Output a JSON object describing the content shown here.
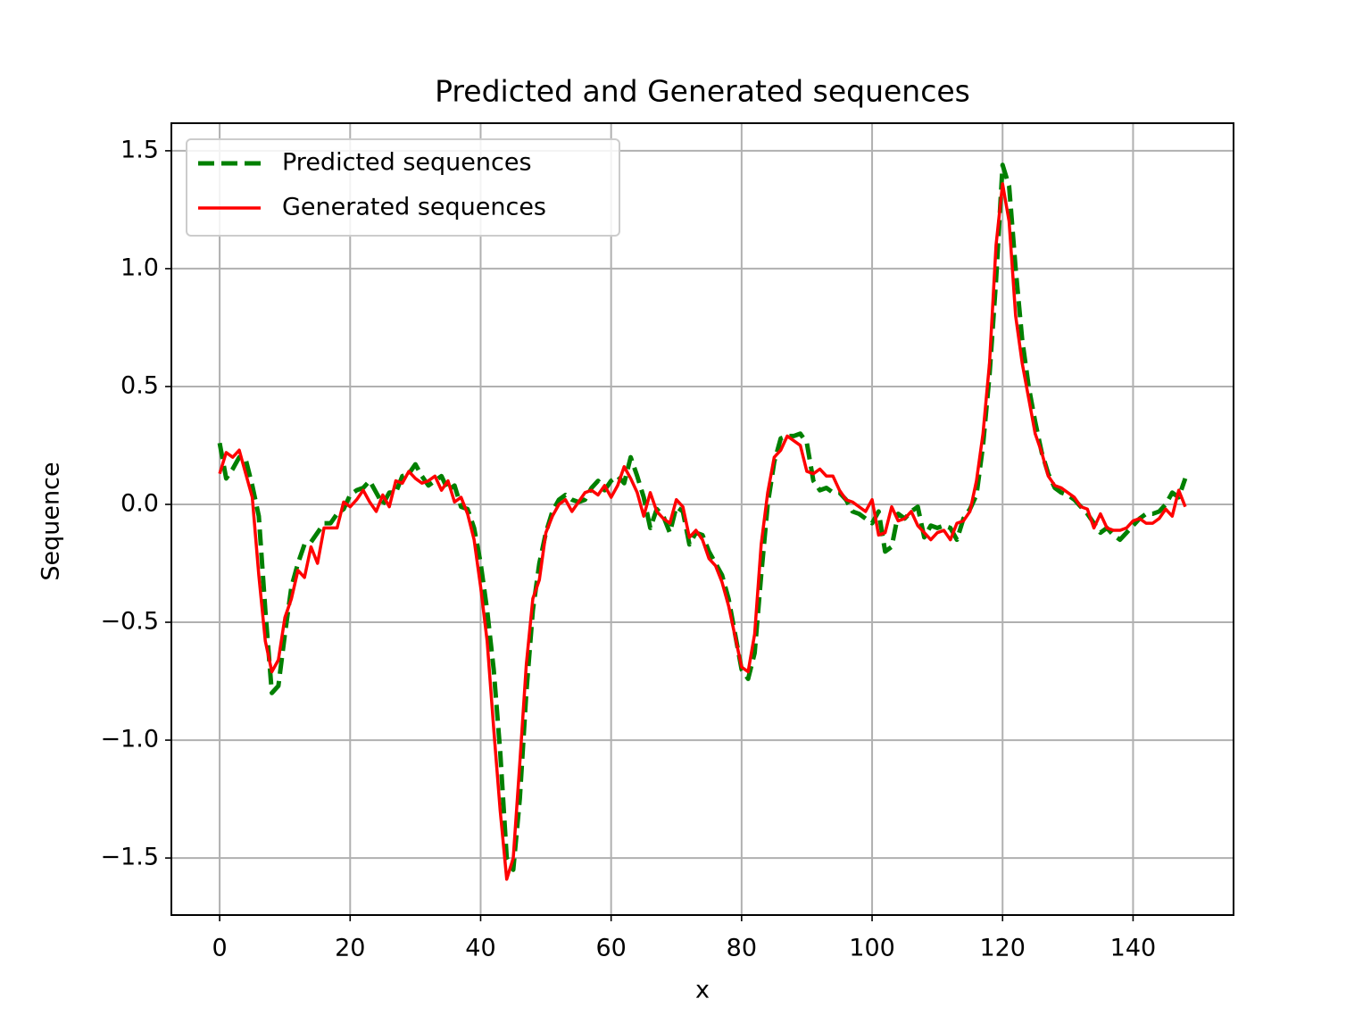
{
  "chart_data": {
    "type": "line",
    "title": "Predicted and Generated sequences",
    "x_label": "x",
    "y_label": "Sequence",
    "x": [
      0,
      1,
      2,
      3,
      4,
      5,
      6,
      7,
      8,
      9,
      10,
      11,
      12,
      13,
      14,
      15,
      16,
      17,
      18,
      19,
      20,
      21,
      22,
      23,
      24,
      25,
      26,
      27,
      28,
      29,
      30,
      31,
      32,
      33,
      34,
      35,
      36,
      37,
      38,
      39,
      40,
      41,
      42,
      43,
      44,
      45,
      46,
      47,
      48,
      49,
      50,
      51,
      52,
      53,
      54,
      55,
      56,
      57,
      58,
      59,
      60,
      61,
      62,
      63,
      64,
      65,
      66,
      67,
      68,
      69,
      70,
      71,
      72,
      73,
      74,
      75,
      76,
      77,
      78,
      79,
      80,
      81,
      82,
      83,
      84,
      85,
      86,
      87,
      88,
      89,
      90,
      91,
      92,
      93,
      94,
      95,
      96,
      97,
      98,
      99,
      100,
      101,
      102,
      103,
      104,
      105,
      106,
      107,
      108,
      109,
      110,
      111,
      112,
      113,
      114,
      115,
      116,
      117,
      118,
      119,
      120,
      121,
      122,
      123,
      124,
      125,
      126,
      127,
      128,
      129,
      130,
      131,
      132,
      133,
      134,
      135,
      136,
      137,
      138,
      139,
      140,
      141,
      142,
      143,
      144,
      145,
      146,
      147,
      148
    ],
    "series": [
      {
        "name": "Predicted sequences",
        "color": "#008000",
        "style": "dashed",
        "values": [
          0.26,
          0.11,
          0.15,
          0.2,
          0.19,
          0.08,
          -0.05,
          -0.45,
          -0.8,
          -0.77,
          -0.55,
          -0.35,
          -0.25,
          -0.17,
          -0.16,
          -0.12,
          -0.08,
          -0.08,
          -0.04,
          -0.02,
          0.04,
          0.06,
          0.07,
          0.1,
          0.05,
          0.0,
          0.05,
          0.05,
          0.12,
          0.13,
          0.17,
          0.12,
          0.08,
          0.1,
          0.12,
          0.06,
          0.08,
          -0.01,
          -0.02,
          -0.1,
          -0.25,
          -0.45,
          -0.7,
          -1.05,
          -1.5,
          -1.55,
          -1.25,
          -0.8,
          -0.45,
          -0.25,
          -0.12,
          -0.03,
          0.02,
          0.04,
          0.02,
          0.01,
          0.02,
          0.07,
          0.1,
          0.06,
          0.1,
          0.12,
          0.09,
          0.2,
          0.12,
          0.03,
          -0.1,
          -0.02,
          -0.05,
          -0.12,
          -0.01,
          -0.03,
          -0.17,
          -0.12,
          -0.13,
          -0.2,
          -0.25,
          -0.3,
          -0.4,
          -0.55,
          -0.7,
          -0.74,
          -0.63,
          -0.3,
          0.0,
          0.18,
          0.28,
          0.29,
          0.29,
          0.3,
          0.26,
          0.1,
          0.06,
          0.07,
          0.05,
          0.05,
          0.02,
          -0.03,
          -0.04,
          -0.06,
          -0.08,
          -0.03,
          -0.2,
          -0.18,
          -0.04,
          -0.06,
          -0.03,
          -0.01,
          -0.14,
          -0.09,
          -0.1,
          -0.09,
          -0.1,
          -0.15,
          -0.06,
          -0.02,
          0.04,
          0.25,
          0.55,
          0.95,
          1.44,
          1.35,
          1.0,
          0.7,
          0.5,
          0.35,
          0.22,
          0.13,
          0.07,
          0.05,
          0.04,
          0.02,
          -0.01,
          -0.04,
          -0.08,
          -0.12,
          -0.1,
          -0.13,
          -0.15,
          -0.12,
          -0.09,
          -0.06,
          -0.04,
          -0.04,
          -0.03,
          0.0,
          0.05,
          0.03,
          0.11
        ]
      },
      {
        "name": "Generated sequences",
        "color": "#ff0000",
        "style": "solid",
        "values": [
          0.13,
          0.22,
          0.2,
          0.23,
          0.13,
          0.03,
          -0.3,
          -0.58,
          -0.71,
          -0.66,
          -0.48,
          -0.4,
          -0.28,
          -0.31,
          -0.18,
          -0.25,
          -0.1,
          -0.1,
          -0.1,
          0.01,
          -0.01,
          0.02,
          0.06,
          0.01,
          -0.03,
          0.04,
          -0.01,
          0.1,
          0.09,
          0.14,
          0.11,
          0.09,
          0.1,
          0.12,
          0.06,
          0.1,
          0.01,
          0.03,
          -0.04,
          -0.15,
          -0.35,
          -0.58,
          -0.95,
          -1.3,
          -1.59,
          -1.5,
          -1.1,
          -0.68,
          -0.4,
          -0.32,
          -0.12,
          -0.05,
          0.0,
          0.02,
          -0.03,
          0.01,
          0.05,
          0.06,
          0.04,
          0.08,
          0.03,
          0.08,
          0.16,
          0.11,
          0.05,
          -0.05,
          0.05,
          -0.03,
          -0.06,
          -0.08,
          0.02,
          -0.01,
          -0.14,
          -0.11,
          -0.15,
          -0.23,
          -0.26,
          -0.33,
          -0.43,
          -0.56,
          -0.69,
          -0.71,
          -0.55,
          -0.17,
          0.05,
          0.2,
          0.23,
          0.29,
          0.27,
          0.25,
          0.14,
          0.13,
          0.15,
          0.12,
          0.12,
          0.06,
          0.02,
          0.01,
          -0.01,
          -0.03,
          0.02,
          -0.13,
          -0.12,
          -0.01,
          -0.07,
          -0.06,
          -0.03,
          -0.09,
          -0.12,
          -0.15,
          -0.12,
          -0.11,
          -0.15,
          -0.08,
          -0.07,
          -0.03,
          0.1,
          0.3,
          0.6,
          1.1,
          1.36,
          1.2,
          0.8,
          0.6,
          0.45,
          0.3,
          0.22,
          0.12,
          0.08,
          0.07,
          0.05,
          0.03,
          -0.01,
          -0.02,
          -0.1,
          -0.04,
          -0.1,
          -0.11,
          -0.11,
          -0.1,
          -0.07,
          -0.06,
          -0.08,
          -0.08,
          -0.06,
          -0.02,
          -0.05,
          0.06,
          -0.01
        ]
      }
    ],
    "xlim": [
      -7.4,
      155.4
    ],
    "ylim": [
      -1.742,
      1.617
    ],
    "xticks": [
      0,
      20,
      40,
      60,
      80,
      100,
      120,
      140
    ],
    "yticks": [
      {
        "value": -1.5,
        "label": "−1.5"
      },
      {
        "value": -1.0,
        "label": "−1.0"
      },
      {
        "value": -0.5,
        "label": "−0.5"
      },
      {
        "value": 0,
        "label": "0.0"
      },
      0.5,
      {
        "value": 1.0,
        "label": "1.0"
      },
      1.5
    ],
    "grid": true,
    "legend": "upper left"
  }
}
